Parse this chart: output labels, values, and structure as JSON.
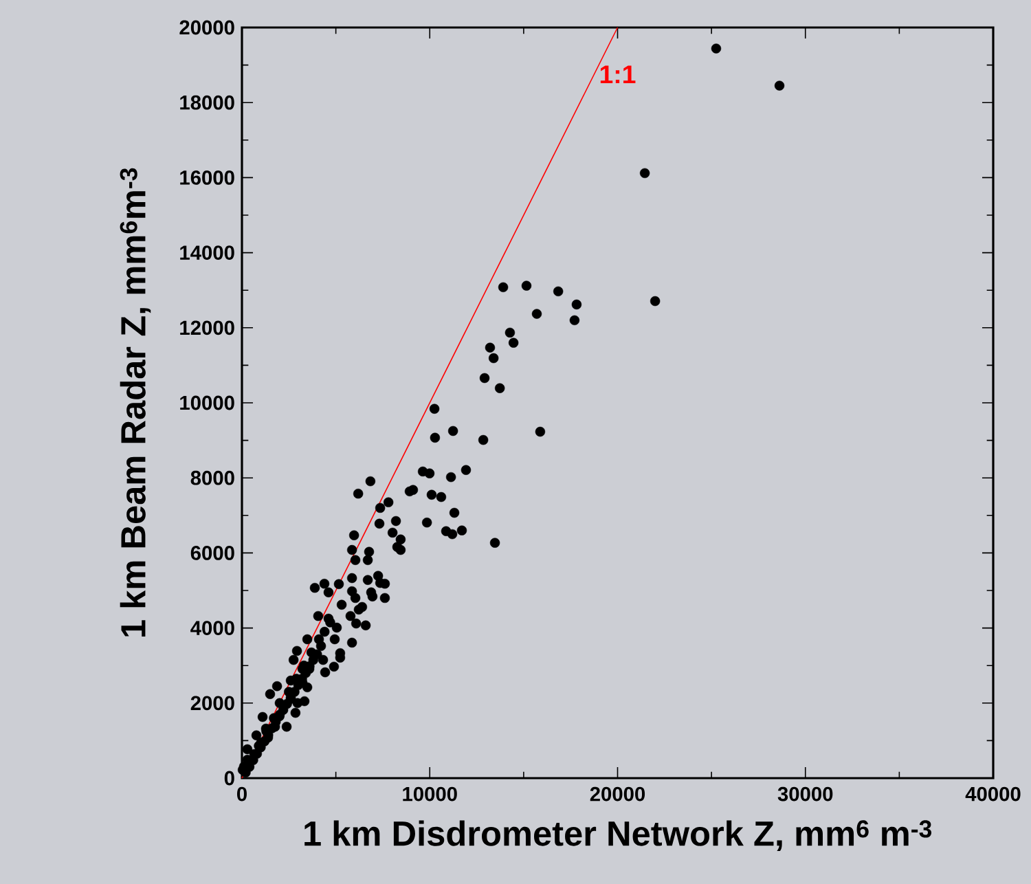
{
  "chart_data": {
    "type": "scatter",
    "xlabel": "1 km Disdrometer Network Z, mm$^{6}$ m$^{-3}$",
    "ylabel": "1 km Beam Radar Z, mm$^{6}$m$^{-3}$",
    "xlim": [
      0,
      40000
    ],
    "ylim": [
      0,
      20000
    ],
    "xticks": [
      0,
      10000,
      20000,
      30000,
      40000
    ],
    "yticks": [
      0,
      2000,
      4000,
      6000,
      8000,
      10000,
      12000,
      14000,
      16000,
      18000,
      20000
    ],
    "series": [
      {
        "color": "#000000",
        "x": [
          200,
          400,
          600,
          800,
          1000,
          1200,
          1400,
          1600,
          1800,
          2000,
          2200,
          2400,
          2600,
          2800,
          3000,
          3200,
          3400,
          3600,
          3800,
          4000,
          900,
          1300,
          1700,
          2500,
          2900,
          3300,
          3700,
          4100,
          4400,
          4700,
          25250,
          28620,
          21450,
          22000,
          13910,
          15150,
          16840,
          17820,
          17710,
          15700,
          14270,
          14460,
          13210,
          13400,
          12920,
          13730,
          10250,
          10280,
          11240,
          12850,
          15880,
          9630,
          9990,
          11130,
          11930,
          6840,
          6190,
          8930,
          9110,
          10100,
          10610,
          7360,
          7800,
          11310,
          7320,
          8200,
          9850,
          10870,
          11200,
          11710,
          8020,
          8450,
          8270,
          8450,
          13470,
          5970,
          5860,
          6040,
          6700,
          6770,
          3880,
          4390,
          4610,
          5160,
          5860,
          5860,
          6040,
          6220,
          6400,
          6080,
          6590,
          6700,
          6880,
          6950,
          7250,
          7610,
          7610,
          7360,
          5780,
          5310,
          4060,
          4610,
          5050,
          4940,
          5860,
          5230,
          5230,
          4900,
          4430,
          4320,
          3480,
          2930,
          2750,
          3330,
          2380,
          2850,
          1870,
          1100,
          770,
          290,
          40,
          1390,
          2010,
          2600,
          3220,
          3590,
          4210,
          3220,
          2010,
          1500,
          3480,
          2960,
          1760,
          1020,
          660,
          1280,
          2600,
          290,
          110
        ],
        "values": [
          150,
          300,
          480,
          650,
          820,
          980,
          1150,
          1330,
          1500,
          1650,
          1820,
          1980,
          2150,
          2300,
          2480,
          2650,
          2800,
          2980,
          3150,
          3300,
          860,
          1250,
          1600,
          2300,
          2650,
          3000,
          3350,
          3700,
          3900,
          4150,
          19440,
          18450,
          16120,
          12710,
          13080,
          13120,
          12970,
          12620,
          12200,
          12370,
          11870,
          11600,
          11470,
          11190,
          10660,
          10390,
          9840,
          9070,
          9250,
          9010,
          9230,
          8170,
          8120,
          8020,
          8210,
          7910,
          7580,
          7640,
          7680,
          7550,
          7490,
          7200,
          7350,
          7070,
          6780,
          6850,
          6810,
          6580,
          6500,
          6600,
          6540,
          6360,
          6160,
          6080,
          6270,
          6470,
          6080,
          5810,
          5810,
          6030,
          5070,
          5180,
          4950,
          5170,
          5330,
          4980,
          4800,
          4490,
          4560,
          4120,
          4070,
          5280,
          4950,
          4840,
          5390,
          5180,
          4800,
          5200,
          4320,
          4620,
          4320,
          4250,
          4010,
          3700,
          3610,
          3330,
          3210,
          2970,
          2820,
          3150,
          3700,
          3390,
          3150,
          2050,
          1370,
          1740,
          2450,
          1630,
          1140,
          770,
          220,
          1080,
          1690,
          2110,
          2550,
          2910,
          3520,
          2910,
          2000,
          2240,
          2420,
          2000,
          1370,
          950,
          640,
          1320,
          2600,
          490,
          310
        ]
      },
      {
        "type": "line",
        "marker": "none",
        "name": "1:1",
        "color": "#ff0000",
        "x": [
          0,
          20000
        ],
        "values": [
          0,
          20000
        ]
      }
    ]
  }
}
